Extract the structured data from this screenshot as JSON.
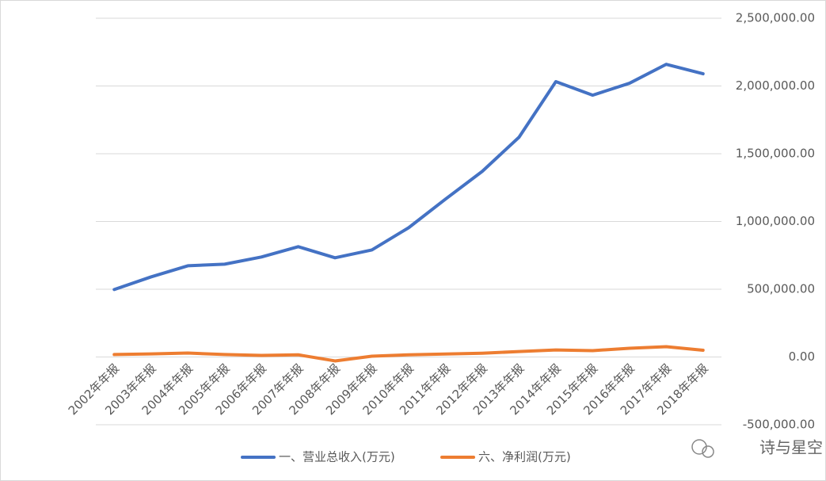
{
  "chart_data": {
    "type": "line",
    "categories": [
      "2002年年报",
      "2003年年报",
      "2004年年报",
      "2005年年报",
      "2006年年报",
      "2007年年报",
      "2008年年报",
      "2009年年报",
      "2010年年报",
      "2011年年报",
      "2012年年报",
      "2013年年报",
      "2014年年报",
      "2015年年报",
      "2016年年报",
      "2017年年报",
      "2018年年报"
    ],
    "series": [
      {
        "name": "一、营业总收入(万元)",
        "color": "#4472c4",
        "values": [
          498000,
          591000,
          673000,
          685000,
          738000,
          814000,
          732000,
          790000,
          954000,
          1165000,
          1370000,
          1622000,
          2032000,
          1932000,
          2020000,
          2160000,
          2090000
        ]
      },
      {
        "name": "六、净利润(万元)",
        "color": "#ed7d31",
        "values": [
          18000,
          23000,
          29000,
          18000,
          12000,
          16000,
          -29000,
          6000,
          16000,
          22000,
          28000,
          40000,
          52000,
          47000,
          64000,
          76000,
          50000
        ]
      }
    ],
    "ylim": [
      -500000,
      2500000
    ],
    "yticks": [
      {
        "value": -500000,
        "label": "-500,000.00"
      },
      {
        "value": 0,
        "label": "0.00"
      },
      {
        "value": 500000,
        "label": "500,000.00"
      },
      {
        "value": 1000000,
        "label": "1,000,000.00"
      },
      {
        "value": 1500000,
        "label": "1,500,000.00"
      },
      {
        "value": 2000000,
        "label": "2,000,000.00"
      },
      {
        "value": 2500000,
        "label": "2,500,000.00"
      }
    ],
    "grid": true,
    "y_axis_side": "right",
    "legend": "bottom",
    "watermark": "诗与星空"
  }
}
